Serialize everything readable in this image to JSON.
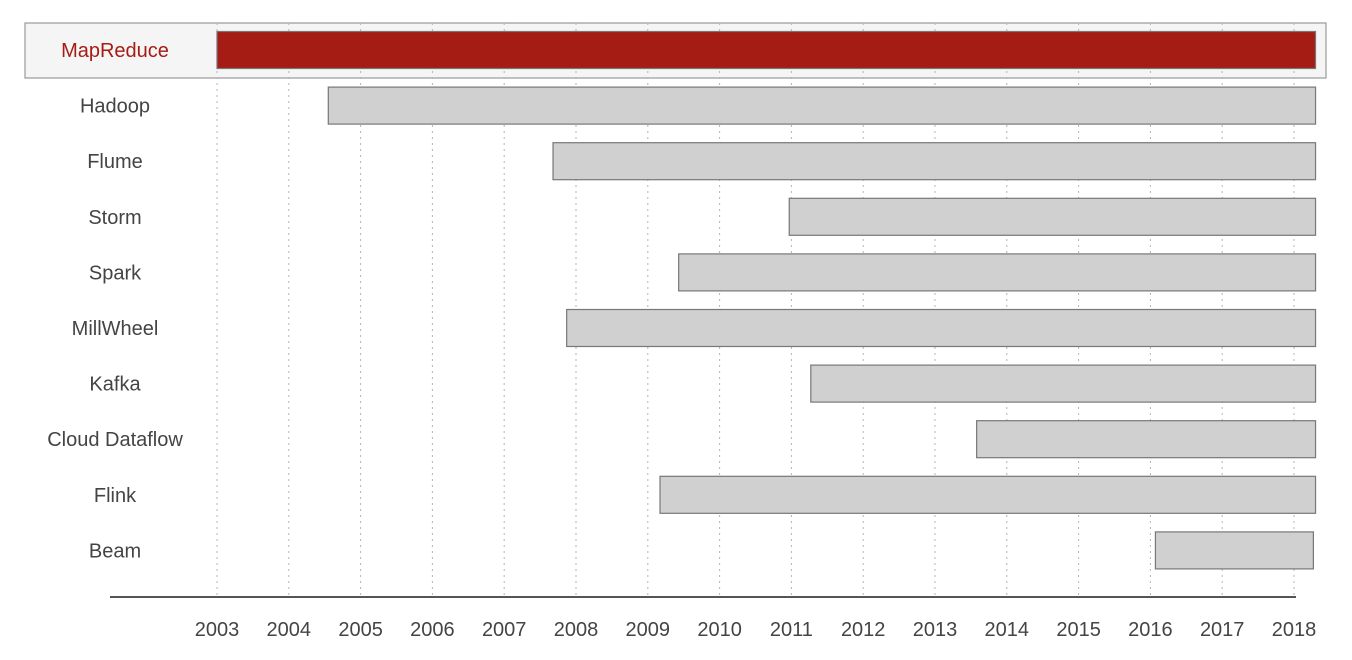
{
  "chart_data": {
    "type": "bar",
    "orientation": "horizontal",
    "title": "",
    "xlabel": "",
    "ylabel": "",
    "x_ticks": [
      "2003",
      "2004",
      "2005",
      "2006",
      "2007",
      "2008",
      "2009",
      "2010",
      "2011",
      "2012",
      "2013",
      "2014",
      "2015",
      "2016",
      "2017",
      "2018"
    ],
    "xlim": [
      2003,
      2018
    ],
    "grid": "vertical dotted",
    "highlighted": "MapReduce",
    "colors": {
      "highlight_bar": "#a51c14",
      "highlight_text": "#a51c14",
      "bar": "#d1d0d0",
      "text": "#444444"
    },
    "series": [
      {
        "name": "MapReduce",
        "start": 2003.0,
        "end": 2018.3
      },
      {
        "name": "Hadoop",
        "start": 2004.55,
        "end": 2018.3
      },
      {
        "name": "Flume",
        "start": 2007.68,
        "end": 2018.3
      },
      {
        "name": "Storm",
        "start": 2010.97,
        "end": 2018.3
      },
      {
        "name": "Spark",
        "start": 2009.43,
        "end": 2018.3
      },
      {
        "name": "MillWheel",
        "start": 2007.87,
        "end": 2018.3
      },
      {
        "name": "Kafka",
        "start": 2011.27,
        "end": 2018.3
      },
      {
        "name": "Cloud Dataflow",
        "start": 2013.58,
        "end": 2018.3
      },
      {
        "name": "Flink",
        "start": 2009.17,
        "end": 2018.3
      },
      {
        "name": "Beam",
        "start": 2016.07,
        "end": 2018.27
      }
    ]
  }
}
